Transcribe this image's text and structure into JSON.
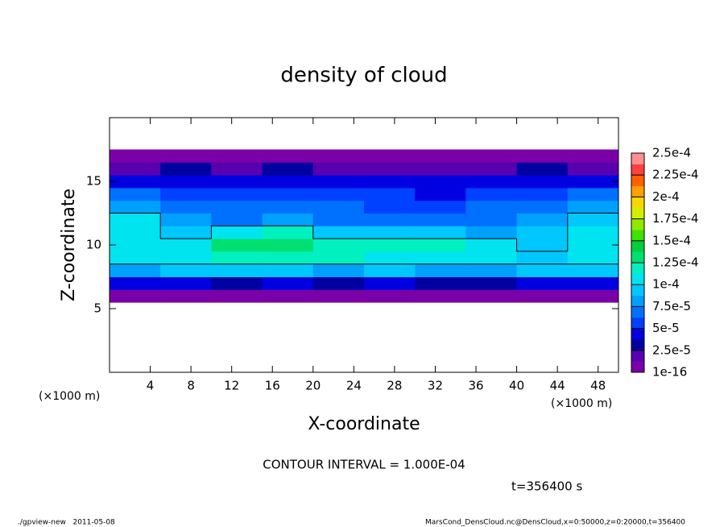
{
  "chart_data": {
    "type": "heatmap",
    "title": "density of cloud",
    "x_label": "X-coordinate",
    "y_label": "Z-coordinate",
    "x_unit": "(×1000 m)",
    "y_unit": "(×1000 m)",
    "note": "CONTOUR INTERVAL = 1.000E-04",
    "time_label": "t=356400 s",
    "footer_left": "./gpview-new   2011-05-08",
    "footer_right": "MarsCond_DensCloud.nc@DensCloud,x=0:50000,z=0:20000,t=356400",
    "xlim": [
      0,
      50
    ],
    "ylim": [
      0,
      20
    ],
    "xticks": [
      4,
      8,
      12,
      16,
      20,
      24,
      28,
      32,
      36,
      40,
      44,
      48
    ],
    "yticks": [
      5,
      10,
      15
    ],
    "x": [
      2.5,
      7.5,
      12.5,
      17.5,
      22.5,
      27.5,
      32.5,
      37.5,
      42.5,
      47.5
    ],
    "z": [
      6,
      7,
      8,
      9,
      10,
      11,
      12,
      13,
      14,
      15,
      16,
      17
    ],
    "values": [
      [
        1e-05,
        1e-05,
        1e-05,
        1e-05,
        1e-05,
        1e-05,
        1e-05,
        1e-05,
        1e-05,
        1e-05
      ],
      [
        4e-05,
        4.5e-05,
        3.5e-05,
        4e-05,
        3e-05,
        4e-05,
        3.5e-05,
        3e-05,
        4e-05,
        4.5e-05
      ],
      [
        8.5e-05,
        9e-05,
        9.5e-05,
        9e-05,
        8e-05,
        9e-05,
        8.5e-05,
        8e-05,
        9e-05,
        9.5e-05
      ],
      [
        0.000105,
        0.00011,
        0.00012,
        0.000125,
        0.000115,
        0.00011,
        0.000105,
        0.000105,
        0.0001,
        0.000105
      ],
      [
        0.00011,
        0.000105,
        0.00013,
        0.000135,
        0.000125,
        0.000115,
        0.000115,
        0.00011,
        9.5e-05,
        0.000105
      ],
      [
        0.000105,
        9e-05,
        0.00011,
        0.000115,
        9.5e-05,
        9e-05,
        9e-05,
        8.5e-05,
        9e-05,
        0.000105
      ],
      [
        0.000105,
        8e-05,
        7.5e-05,
        8e-05,
        7.5e-05,
        7.5e-05,
        7e-05,
        7e-05,
        8e-05,
        0.0001
      ],
      [
        8.5e-05,
        7e-05,
        6.5e-05,
        6.5e-05,
        6.5e-05,
        6e-05,
        6e-05,
        6.5e-05,
        7e-05,
        8e-05
      ],
      [
        6.5e-05,
        6e-05,
        6e-05,
        6e-05,
        5.5e-05,
        5.5e-05,
        5e-05,
        5.5e-05,
        6e-05,
        6.5e-05
      ],
      [
        5e-05,
        5e-05,
        4.5e-05,
        5e-05,
        4.5e-05,
        4.5e-05,
        4e-05,
        4.5e-05,
        5e-05,
        5e-05
      ],
      [
        2.5e-05,
        2.8e-05,
        2.5e-05,
        2.6e-05,
        2.4e-05,
        2.5e-05,
        2.3e-05,
        2.5e-05,
        2.7e-05,
        2.5e-05
      ],
      [
        8e-06,
        8e-06,
        8e-06,
        8e-06,
        8e-06,
        8e-06,
        8e-06,
        8e-06,
        8e-06,
        8e-06
      ]
    ],
    "contour_levels": [
      0.0001
    ],
    "colorbar_ticks": [
      {
        "value": 1e-16,
        "label": "1e-16"
      },
      {
        "value": 2.5e-05,
        "label": "2.5e-5"
      },
      {
        "value": 5e-05,
        "label": "5e-5"
      },
      {
        "value": 7.5e-05,
        "label": "7.5e-5"
      },
      {
        "value": 0.0001,
        "label": "1e-4"
      },
      {
        "value": 0.000125,
        "label": "1.25e-4"
      },
      {
        "value": 0.00015,
        "label": "1.5e-4"
      },
      {
        "value": 0.000175,
        "label": "1.75e-4"
      },
      {
        "value": 0.0002,
        "label": "2e-4"
      },
      {
        "value": 0.000225,
        "label": "2.25e-4"
      },
      {
        "value": 0.00025,
        "label": "2.5e-4"
      }
    ],
    "colors": [
      "#7a00a8",
      "#5800b0",
      "#0000a0",
      "#0000e0",
      "#0040ff",
      "#0070ff",
      "#00a0ff",
      "#00c8ff",
      "#00e4f0",
      "#00f0c0",
      "#00e070",
      "#00d040",
      "#40e000",
      "#90e800",
      "#d0f000",
      "#f8d800",
      "#ffa000",
      "#ff6000",
      "#ff4040",
      "#ff9090"
    ]
  }
}
